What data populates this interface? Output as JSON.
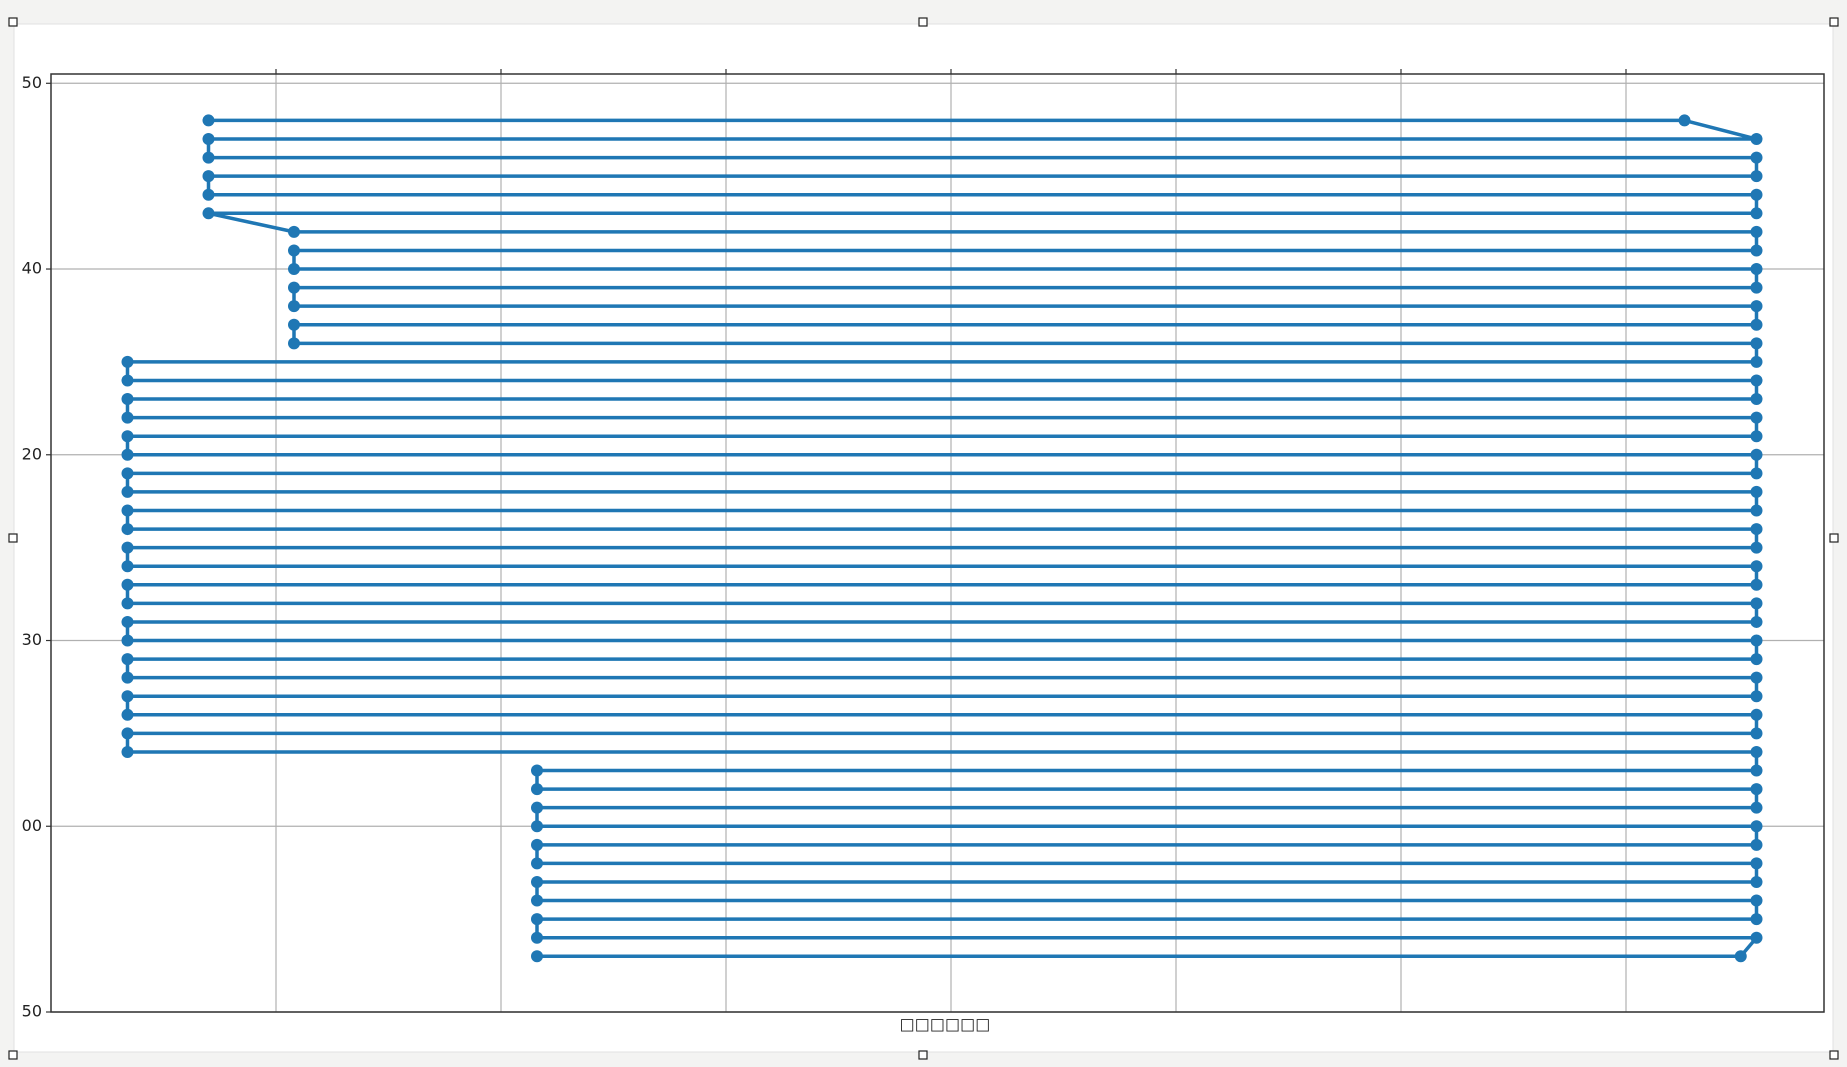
{
  "chart_data": {
    "type": "line",
    "color": "#1f77b4",
    "xlabel": "□□□□□□",
    "grid": true,
    "markers": true,
    "xlim": [
      0,
      7.88
    ],
    "xticks": [
      1,
      2,
      3,
      4,
      5,
      6,
      7
    ],
    "ylim": [
      0,
      5.05
    ],
    "yticks": [
      {
        "value": 0,
        "label": "50"
      },
      {
        "value": 1,
        "label": "00"
      },
      {
        "value": 2,
        "label": "30"
      },
      {
        "value": 3,
        "label": "20"
      },
      {
        "value": 4,
        "label": "40"
      },
      {
        "value": 5,
        "label": "50"
      }
    ],
    "x": [
      0.7,
      7.26,
      7.58,
      0.7,
      0.7,
      7.58,
      7.58,
      0.7,
      0.7,
      7.58,
      7.58,
      0.7,
      1.08,
      7.58,
      7.58,
      1.08,
      1.08,
      7.58,
      7.58,
      1.08,
      1.08,
      7.58,
      7.58,
      1.08,
      1.08,
      7.58,
      7.58,
      0.34,
      0.34,
      7.58,
      7.58,
      0.34,
      0.34,
      7.58,
      7.58,
      0.34,
      0.34,
      7.58,
      7.58,
      0.34,
      0.34,
      7.58,
      7.58,
      0.34,
      0.34,
      7.58,
      7.58,
      0.34,
      0.34,
      7.58,
      7.58,
      0.34,
      0.34,
      7.58,
      7.58,
      0.34,
      0.34,
      7.58,
      7.58,
      0.34,
      0.34,
      7.58,
      7.58,
      0.34,
      0.34,
      7.58,
      7.58,
      0.34,
      0.34,
      7.58,
      7.58,
      2.16,
      2.16,
      7.58,
      7.58,
      2.16,
      2.16,
      7.58,
      7.58,
      2.16,
      2.16,
      7.58,
      7.58,
      2.16,
      2.16,
      7.58,
      7.58,
      2.16,
      2.16,
      7.58,
      7.51,
      2.16
    ],
    "series": [
      {
        "values": [
          4.8,
          4.8,
          4.7,
          4.7,
          4.6,
          4.6,
          4.5,
          4.5,
          4.4,
          4.4,
          4.3,
          4.3,
          4.2,
          4.2,
          4.1,
          4.1,
          4.0,
          4.0,
          3.9,
          3.9,
          3.8,
          3.8,
          3.7,
          3.7,
          3.6,
          3.6,
          3.5,
          3.5,
          3.4,
          3.4,
          3.3,
          3.3,
          3.2,
          3.2,
          3.1,
          3.1,
          3.0,
          3.0,
          2.9,
          2.9,
          2.8,
          2.8,
          2.7,
          2.7,
          2.6,
          2.6,
          2.5,
          2.5,
          2.4,
          2.4,
          2.3,
          2.3,
          2.2,
          2.2,
          2.1,
          2.1,
          2.0,
          2.0,
          1.9,
          1.9,
          1.8,
          1.8,
          1.7,
          1.7,
          1.6,
          1.6,
          1.5,
          1.5,
          1.4,
          1.4,
          1.3,
          1.3,
          1.2,
          1.2,
          1.1,
          1.1,
          1.0,
          1.0,
          0.9,
          0.9,
          0.8,
          0.8,
          0.7,
          0.7,
          0.6,
          0.6,
          0.5,
          0.5,
          0.4,
          0.4,
          0.3,
          0.3
        ]
      }
    ]
  }
}
